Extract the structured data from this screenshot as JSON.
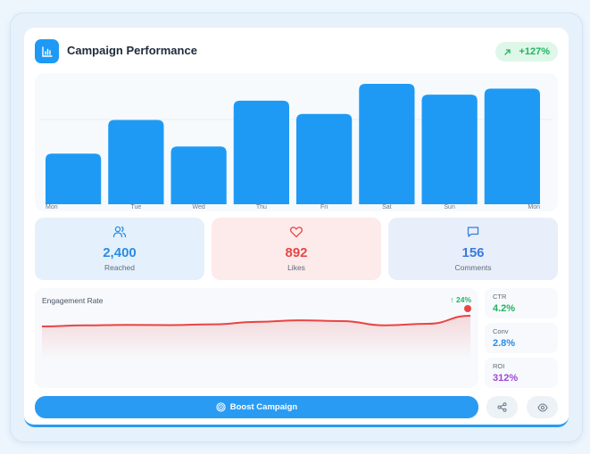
{
  "header": {
    "title": "Campaign Performance",
    "badge": "+127%",
    "logo_icon": "bar-chart-icon",
    "badge_icon": "trend-up-arrow-icon"
  },
  "chart_data": {
    "type": "bar",
    "categories": [
      "Mon",
      "Tue",
      "Wed",
      "Thu",
      "Fri",
      "Sat",
      "Sun",
      "Mon"
    ],
    "values": [
      42,
      70,
      48,
      86,
      75,
      100,
      91,
      96
    ],
    "ylim": [
      0,
      100
    ],
    "grid": true,
    "color": "#1e9af5"
  },
  "stats": [
    {
      "icon": "users-icon",
      "value": "2,400",
      "label": "Reached",
      "color": "#2a8ce6",
      "bg": "#e4f1fc"
    },
    {
      "icon": "heart-icon",
      "value": "892",
      "label": "Likes",
      "color": "#e54848",
      "bg": "#fdeaea"
    },
    {
      "icon": "comment-icon",
      "value": "156",
      "label": "Comments",
      "color": "#3a7bdc",
      "bg": "#e8effb"
    }
  ],
  "engagement": {
    "title": "Engagement Rate",
    "trend": "↑ 24%",
    "line_color": "#e84545",
    "points": [
      30,
      34,
      36,
      35,
      38,
      47,
      53,
      50,
      34,
      40,
      70
    ]
  },
  "metrics": [
    {
      "label": "CTR",
      "value": "4.2%",
      "color": "#22b360"
    },
    {
      "label": "Conv",
      "value": "2.8%",
      "color": "#2a8ce6"
    },
    {
      "label": "ROI",
      "value": "312%",
      "color": "#a046d8"
    }
  ],
  "actions": {
    "boost_label": "Boost Campaign",
    "boost_icon": "target-icon",
    "share_icon": "share-icon",
    "view_icon": "eye-icon"
  }
}
